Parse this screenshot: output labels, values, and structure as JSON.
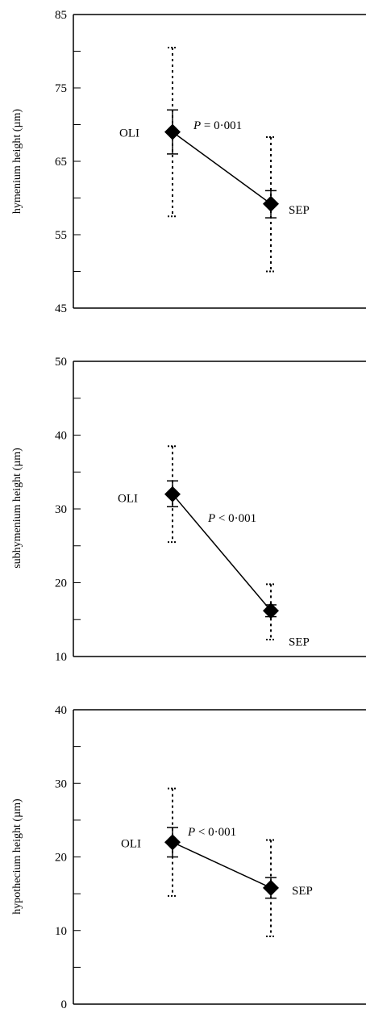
{
  "chart_data": [
    {
      "type": "scatter",
      "ylabel": "hymenium height (µm)",
      "ylim": [
        45,
        85
      ],
      "yticks": [
        45,
        55,
        65,
        75,
        85
      ],
      "points": [
        {
          "label": "OLI",
          "y": 69,
          "se": [
            66,
            72
          ],
          "sd": [
            57.5,
            80.5
          ]
        },
        {
          "label": "SEP",
          "y": 59.2,
          "se": [
            57.3,
            61
          ],
          "sd": [
            50,
            68.3
          ]
        }
      ],
      "p_italic": "P",
      "p_rest": " = 0·001"
    },
    {
      "type": "scatter",
      "ylabel": "subhymenium height (µm)",
      "ylim": [
        10,
        50
      ],
      "yticks": [
        10,
        20,
        30,
        40,
        50
      ],
      "points": [
        {
          "label": "OLI",
          "y": 32,
          "se": [
            30.3,
            33.8
          ],
          "sd": [
            25.5,
            38.5
          ]
        },
        {
          "label": "SEP",
          "y": 16.2,
          "se": [
            15.4,
            17
          ],
          "sd": [
            12.3,
            19.8
          ]
        }
      ],
      "p_italic": "P",
      "p_rest": " < 0·001"
    },
    {
      "type": "scatter",
      "ylabel": "hypothecium height (µm)",
      "ylim": [
        0,
        40
      ],
      "yticks": [
        0,
        10,
        20,
        30,
        40
      ],
      "points": [
        {
          "label": "OLI",
          "y": 22,
          "se": [
            20,
            24
          ],
          "sd": [
            14.7,
            29.3
          ]
        },
        {
          "label": "SEP",
          "y": 15.8,
          "se": [
            14.4,
            17.2
          ],
          "sd": [
            9.2,
            22.3
          ]
        }
      ],
      "p_italic": "P",
      "p_rest": " < 0·001"
    }
  ]
}
